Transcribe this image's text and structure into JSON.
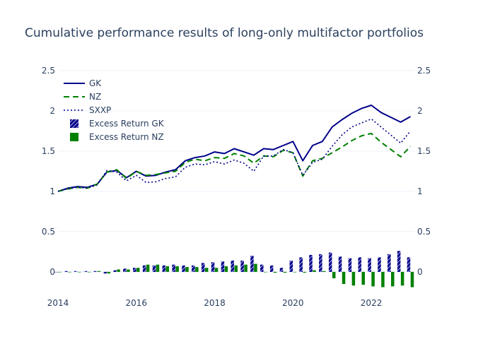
{
  "chart_data": {
    "type": "line",
    "title": "Cumulative performance results of long-only multifactor portfolios",
    "xlabel": "",
    "ylabel": "",
    "x_ticks": [
      "2014",
      "2016",
      "2018",
      "2020",
      "2022"
    ],
    "x_range": [
      2014.0,
      2023.1
    ],
    "y_ticks": [
      "0",
      "0.5",
      "1",
      "1.5",
      "2",
      "2.5"
    ],
    "ylim": [
      -0.15,
      2.5
    ],
    "y2_ticks": [
      "0",
      "0.5",
      "1",
      "1.5",
      "2",
      "2.5"
    ],
    "legend_position": "top-left",
    "grid": true,
    "colors": {
      "gk": "#00008b",
      "nz": "#008000",
      "sxxp": "#00008b"
    },
    "series": [
      {
        "name": "GK",
        "style": "solid",
        "x": [
          2014.0,
          2014.25,
          2014.5,
          2014.75,
          2015.0,
          2015.25,
          2015.5,
          2015.75,
          2016.0,
          2016.25,
          2016.5,
          2016.75,
          2017.0,
          2017.25,
          2017.5,
          2017.75,
          2018.0,
          2018.25,
          2018.5,
          2018.75,
          2019.0,
          2019.25,
          2019.5,
          2019.75,
          2020.0,
          2020.25,
          2020.5,
          2020.75,
          2021.0,
          2021.25,
          2021.5,
          2021.75,
          2022.0,
          2022.25,
          2022.5,
          2022.75,
          2023.0
        ],
        "values": [
          1.0,
          1.04,
          1.06,
          1.05,
          1.09,
          1.24,
          1.26,
          1.17,
          1.25,
          1.19,
          1.2,
          1.24,
          1.27,
          1.38,
          1.42,
          1.44,
          1.49,
          1.47,
          1.53,
          1.49,
          1.45,
          1.53,
          1.52,
          1.57,
          1.62,
          1.38,
          1.57,
          1.62,
          1.8,
          1.89,
          1.97,
          2.03,
          2.07,
          1.98,
          1.92,
          1.86,
          1.93
        ]
      },
      {
        "name": "NZ",
        "style": "dash",
        "x": [
          2014.0,
          2014.25,
          2014.5,
          2014.75,
          2015.0,
          2015.25,
          2015.5,
          2015.75,
          2016.0,
          2016.25,
          2016.5,
          2016.75,
          2017.0,
          2017.25,
          2017.5,
          2017.75,
          2018.0,
          2018.25,
          2018.5,
          2018.75,
          2019.0,
          2019.25,
          2019.5,
          2019.75,
          2020.0,
          2020.25,
          2020.5,
          2020.75,
          2021.0,
          2021.25,
          2021.5,
          2021.75,
          2022.0,
          2022.25,
          2022.5,
          2022.75,
          2023.0
        ],
        "values": [
          1.0,
          1.03,
          1.05,
          1.04,
          1.09,
          1.24,
          1.27,
          1.16,
          1.25,
          1.2,
          1.21,
          1.23,
          1.25,
          1.36,
          1.4,
          1.38,
          1.42,
          1.41,
          1.47,
          1.44,
          1.35,
          1.44,
          1.43,
          1.51,
          1.48,
          1.19,
          1.38,
          1.41,
          1.48,
          1.55,
          1.63,
          1.69,
          1.72,
          1.61,
          1.52,
          1.43,
          1.56
        ]
      },
      {
        "name": "SXXP",
        "style": "dot",
        "x": [
          2014.0,
          2014.25,
          2014.5,
          2014.75,
          2015.0,
          2015.25,
          2015.5,
          2015.75,
          2016.0,
          2016.25,
          2016.5,
          2016.75,
          2017.0,
          2017.25,
          2017.5,
          2017.75,
          2018.0,
          2018.25,
          2018.5,
          2018.75,
          2019.0,
          2019.25,
          2019.5,
          2019.75,
          2020.0,
          2020.25,
          2020.5,
          2020.75,
          2021.0,
          2021.25,
          2021.5,
          2021.75,
          2022.0,
          2022.25,
          2022.5,
          2022.75,
          2023.0
        ],
        "values": [
          1.0,
          1.03,
          1.05,
          1.04,
          1.08,
          1.26,
          1.24,
          1.13,
          1.2,
          1.11,
          1.12,
          1.16,
          1.18,
          1.3,
          1.34,
          1.33,
          1.37,
          1.34,
          1.39,
          1.35,
          1.25,
          1.44,
          1.44,
          1.52,
          1.48,
          1.2,
          1.36,
          1.4,
          1.56,
          1.7,
          1.8,
          1.85,
          1.9,
          1.8,
          1.7,
          1.6,
          1.75
        ]
      }
    ],
    "bar_series": [
      {
        "name": "Excess Return GK",
        "x": [
          2014.0,
          2014.25,
          2014.5,
          2014.75,
          2015.0,
          2015.25,
          2015.5,
          2015.75,
          2016.0,
          2016.25,
          2016.5,
          2016.75,
          2017.0,
          2017.25,
          2017.5,
          2017.75,
          2018.0,
          2018.25,
          2018.5,
          2018.75,
          2019.0,
          2019.25,
          2019.5,
          2019.75,
          2020.0,
          2020.25,
          2020.5,
          2020.75,
          2021.0,
          2021.25,
          2021.5,
          2021.75,
          2022.0,
          2022.25,
          2022.5,
          2022.75,
          2023.0
        ],
        "values": [
          0.0,
          0.01,
          0.01,
          0.01,
          0.01,
          -0.02,
          0.02,
          0.04,
          0.05,
          0.08,
          0.08,
          0.08,
          0.09,
          0.08,
          0.08,
          0.11,
          0.12,
          0.13,
          0.14,
          0.14,
          0.2,
          0.09,
          0.08,
          0.05,
          0.14,
          0.18,
          0.21,
          0.22,
          0.24,
          0.19,
          0.17,
          0.18,
          0.17,
          0.18,
          0.22,
          0.26,
          0.18
        ]
      },
      {
        "name": "Excess Return NZ",
        "x": [
          2014.0,
          2014.25,
          2014.5,
          2014.75,
          2015.0,
          2015.25,
          2015.5,
          2015.75,
          2016.0,
          2016.25,
          2016.5,
          2016.75,
          2017.0,
          2017.25,
          2017.5,
          2017.75,
          2018.0,
          2018.25,
          2018.5,
          2018.75,
          2019.0,
          2019.25,
          2019.5,
          2019.75,
          2020.0,
          2020.25,
          2020.5,
          2020.75,
          2021.0,
          2021.25,
          2021.5,
          2021.75,
          2022.0,
          2022.25,
          2022.5,
          2022.75,
          2023.0
        ],
        "values": [
          0.0,
          0.0,
          0.0,
          0.0,
          0.01,
          -0.02,
          0.03,
          0.03,
          0.05,
          0.09,
          0.09,
          0.07,
          0.07,
          0.06,
          0.06,
          0.05,
          0.05,
          0.07,
          0.08,
          0.09,
          0.1,
          0.0,
          -0.01,
          -0.01,
          0.0,
          -0.01,
          0.02,
          0.01,
          -0.08,
          -0.15,
          -0.17,
          -0.16,
          -0.18,
          -0.19,
          -0.18,
          -0.17,
          -0.19
        ]
      }
    ]
  }
}
